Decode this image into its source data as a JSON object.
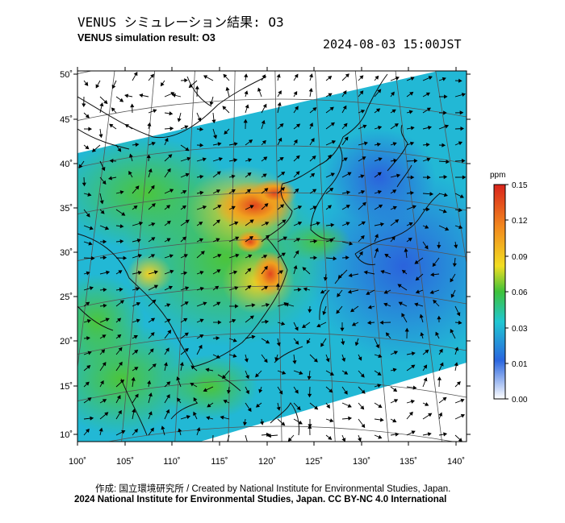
{
  "header": {
    "title_jp": "VENUS シミュレーション結果: O3",
    "title_en": "VENUS simulation result: O3",
    "timestamp": "2024-08-03 15:00JST"
  },
  "map": {
    "lon_ticks": [
      "100˚",
      "105˚",
      "110˚",
      "115˚",
      "120˚",
      "125˚",
      "130˚",
      "135˚",
      "140˚"
    ],
    "lat_ticks": [
      "50˚",
      "45˚",
      "40˚",
      "35˚",
      "30˚",
      "25˚",
      "20˚",
      "15˚",
      "10˚"
    ],
    "field": "O3",
    "overlay": "wind vectors"
  },
  "colorbar": {
    "unit": "ppm",
    "ticks": [
      "0.15",
      "0.12",
      "0.09",
      "0.06",
      "0.03",
      "0.01",
      "0.00"
    ],
    "colors": [
      "#d92b1e",
      "#f08a1d",
      "#f5d21c",
      "#3cc43a",
      "#21c4cf",
      "#2a6fe0",
      "#ffffff"
    ]
  },
  "footer": {
    "credit": "作成: 国立環境研究所 / Created by National Institute for Environmental Studies, Japan.",
    "copyright": "2024 National Institute for Environmental Studies, Japan. CC BY-NC 4.0 International"
  }
}
